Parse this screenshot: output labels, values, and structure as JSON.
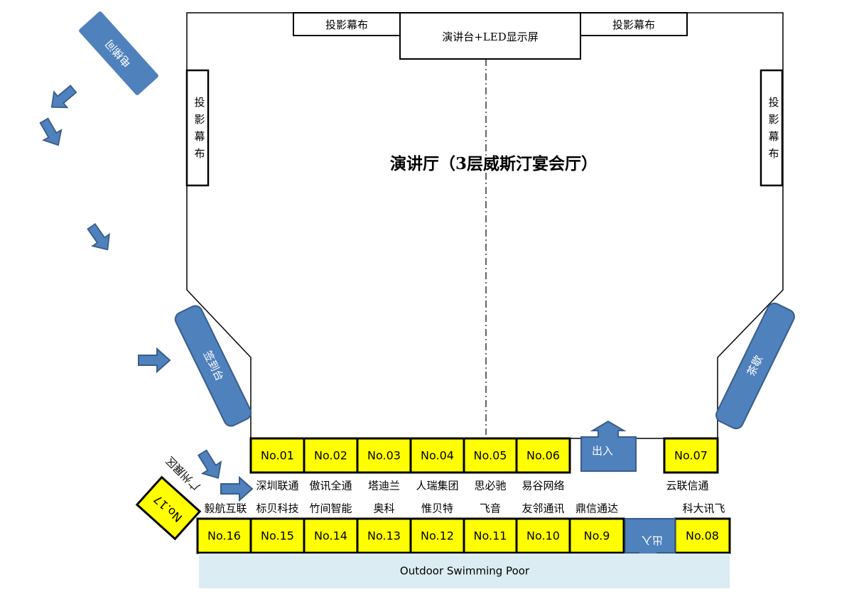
{
  "hall": {
    "title": "演讲厅（3层威斯汀宴会厅）",
    "stage": "演讲台+LED显示屏",
    "screen_top_left": "投影幕布",
    "screen_top_right": "投影幕布",
    "screen_side_left": [
      "投",
      "影",
      "幕",
      "布"
    ],
    "screen_side_right": [
      "投",
      "影",
      "幕",
      "布"
    ]
  },
  "areas": {
    "elevator": "电梯间",
    "sign_in": "签到台",
    "tea_break": "茶歇",
    "guangzhou_zone": "广州展区",
    "entrance_top": "出入",
    "entrance_bottom": "出入",
    "pool": "Outdoor Swimming Poor"
  },
  "booths_top": [
    {
      "id": "No.01",
      "company": "深圳联通"
    },
    {
      "id": "No.02",
      "company": "傲讯全通"
    },
    {
      "id": "No.03",
      "company": "塔迪兰"
    },
    {
      "id": "No.04",
      "company": "人瑞集团"
    },
    {
      "id": "No.05",
      "company": "思必驰"
    },
    {
      "id": "No.06",
      "company": "易谷网络"
    },
    {
      "id": "No.07",
      "company": "云联信通"
    }
  ],
  "booths_bottom": [
    {
      "id": "No.16",
      "company": "毅航互联"
    },
    {
      "id": "No.15",
      "company": "标贝科技"
    },
    {
      "id": "No.14",
      "company": "竹间智能"
    },
    {
      "id": "No.13",
      "company": "奥科"
    },
    {
      "id": "No.12",
      "company": "惟贝特"
    },
    {
      "id": "No.11",
      "company": "飞音"
    },
    {
      "id": "No.10",
      "company": "友邻通讯"
    },
    {
      "id": "No.9",
      "company": "鼎信通达"
    },
    {
      "id": "No.08",
      "company": "科大讯飞"
    }
  ],
  "booth_17": {
    "id": "No.17"
  },
  "colors": {
    "booth": "#ffff00",
    "blue": "#4f81bd",
    "blue_border": "#385d8a",
    "pool": "#dbecf2"
  }
}
